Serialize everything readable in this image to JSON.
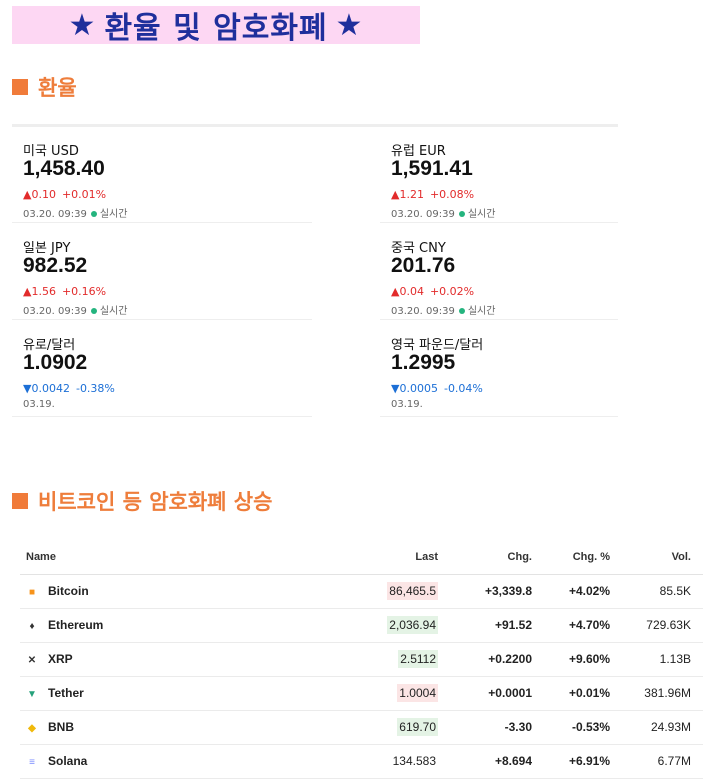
{
  "banner": {
    "star": "★",
    "title": "환율 및 암호화폐"
  },
  "fx_section": {
    "title": "환율"
  },
  "fx": [
    {
      "name": "미국 USD",
      "value": "1,458.40",
      "dir": "up",
      "arrow": "▲",
      "change": "0.10",
      "pct": "+0.01%",
      "time": "03.20. 09:39",
      "live": "실시간"
    },
    {
      "name": "유럽 EUR",
      "value": "1,591.41",
      "dir": "up",
      "arrow": "▲",
      "change": "1.21",
      "pct": "+0.08%",
      "time": "03.20. 09:39",
      "live": "실시간"
    },
    {
      "name": "일본 JPY",
      "value": "982.52",
      "dir": "up",
      "arrow": "▲",
      "change": "1.56",
      "pct": "+0.16%",
      "time": "03.20. 09:39",
      "live": "실시간"
    },
    {
      "name": "중국 CNY",
      "value": "201.76",
      "dir": "up",
      "arrow": "▲",
      "change": "0.04",
      "pct": "+0.02%",
      "time": "03.20. 09:39",
      "live": "실시간"
    },
    {
      "name": "유로/달러",
      "value": "1.0902",
      "dir": "down",
      "arrow": "▼",
      "change": "0.0042",
      "pct": "-0.38%",
      "time": "03.19.",
      "live": ""
    },
    {
      "name": "영국 파운드/달러",
      "value": "1.2995",
      "dir": "down",
      "arrow": "▼",
      "change": "0.0005",
      "pct": "-0.04%",
      "time": "03.19.",
      "live": ""
    }
  ],
  "crypto_section": {
    "title": "비트코인 등 암호화폐 상승"
  },
  "crypto_table": {
    "headers": {
      "name": "Name",
      "last": "Last",
      "chg": "Chg.",
      "chg_pct": "Chg. %",
      "vol": "Vol."
    },
    "rows": [
      {
        "name": "Bitcoin",
        "icon": "bitcoin-icon",
        "icon_color": "#f7931a",
        "last": "86,465.5",
        "last_hl": "down",
        "chg": "+3,339.8",
        "chg_pct": "+4.02%",
        "vol": "85.5K",
        "dir": "pos"
      },
      {
        "name": "Ethereum",
        "icon": "ethereum-icon",
        "icon_color": "#333333",
        "last": "2,036.94",
        "last_hl": "up",
        "chg": "+91.52",
        "chg_pct": "+4.70%",
        "vol": "729.63K",
        "dir": "pos"
      },
      {
        "name": "XRP",
        "icon": "xrp-icon",
        "icon_color": "#333333",
        "last": "2.5112",
        "last_hl": "up",
        "chg": "+0.2200",
        "chg_pct": "+9.60%",
        "vol": "1.13B",
        "dir": "pos"
      },
      {
        "name": "Tether",
        "icon": "tether-icon",
        "icon_color": "#26a17b",
        "last": "1.0004",
        "last_hl": "down",
        "chg": "+0.0001",
        "chg_pct": "+0.01%",
        "vol": "381.96M",
        "dir": "pos"
      },
      {
        "name": "BNB",
        "icon": "bnb-icon",
        "icon_color": "#f0b90b",
        "last": "619.70",
        "last_hl": "up",
        "chg": "-3.30",
        "chg_pct": "-0.53%",
        "vol": "24.93M",
        "dir": "neg"
      },
      {
        "name": "Solana",
        "icon": "solana-icon",
        "icon_color": "#7b8cff",
        "last": "134.583",
        "last_hl": "none",
        "chg": "+8.694",
        "chg_pct": "+6.91%",
        "vol": "6.77M",
        "dir": "pos"
      }
    ]
  }
}
